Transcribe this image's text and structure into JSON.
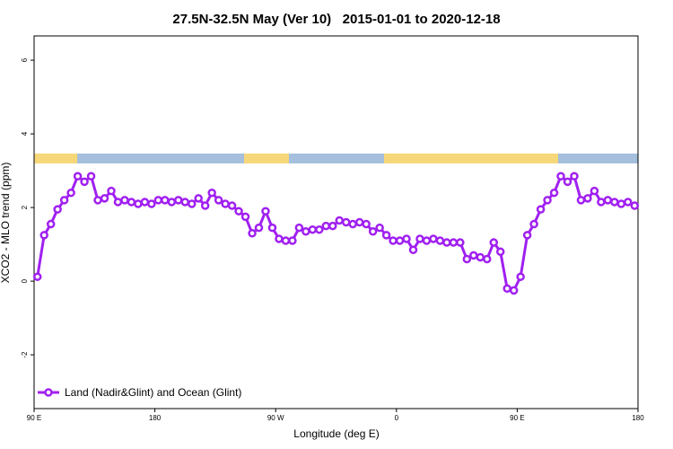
{
  "chart_data": {
    "type": "line",
    "title": "27.5N-32.5N May (Ver 10)   2015-01-01 to 2020-12-18",
    "x_label": "Longitude (deg E)",
    "y_label": "XCO2 - MLO trend (ppm)",
    "xlim": [
      90,
      540
    ],
    "xticks": [
      {
        "value": 90,
        "label": "90 E"
      },
      180,
      {
        "value": 270,
        "label": "90 W"
      },
      {
        "value": 360,
        "label": "0"
      },
      {
        "value": 450,
        "label": "90 E"
      },
      {
        "value": 540,
        "label": "180"
      }
    ],
    "ylim": [
      -3.46,
      6.66
    ],
    "yticks": [
      -2,
      0,
      2,
      4,
      6
    ],
    "legend": "bottom-left",
    "x": [
      92.5,
      97.5,
      102.5,
      107.5,
      112.5,
      117.5,
      122.5,
      127.5,
      132.5,
      137.5,
      142.5,
      147.5,
      152.5,
      157.5,
      162.5,
      167.5,
      172.5,
      177.5,
      182.5,
      187.5,
      192.5,
      197.5,
      202.5,
      207.5,
      212.5,
      217.5,
      222.5,
      227.5,
      232.5,
      237.5,
      242.5,
      247.5,
      252.5,
      257.5,
      262.5,
      267.5,
      272.5,
      277.5,
      282.5,
      287.5,
      292.5,
      297.5,
      302.5,
      307.5,
      312.5,
      317.5,
      322.5,
      327.5,
      332.5,
      337.5,
      342.5,
      347.5,
      352.5,
      357.5,
      362.5,
      367.5,
      372.5,
      377.5,
      382.5,
      387.5,
      392.5,
      397.5,
      402.5,
      407.5,
      412.5,
      417.5,
      422.5,
      427.5,
      432.5,
      437.5,
      442.5,
      447.5,
      452.5,
      457.5,
      462.5,
      467.5,
      472.5,
      477.5,
      482.5,
      487.5,
      492.5,
      497.5,
      502.5,
      507.5,
      512.5,
      517.5,
      522.5,
      527.5,
      532.5,
      537.5
    ],
    "series": [
      {
        "name": "Land (Nadir&Glint) and Ocean (Glint)",
        "color": "#a020f0",
        "values": [
          0.12,
          1.25,
          1.55,
          1.95,
          2.2,
          2.4,
          2.85,
          2.7,
          2.85,
          2.2,
          2.25,
          2.45,
          2.15,
          2.2,
          2.15,
          2.1,
          2.15,
          2.1,
          2.2,
          2.2,
          2.15,
          2.2,
          2.15,
          2.1,
          2.25,
          2.05,
          2.4,
          2.2,
          2.1,
          2.05,
          1.9,
          1.75,
          1.3,
          1.45,
          1.9,
          1.45,
          1.15,
          1.1,
          1.1,
          1.45,
          1.35,
          1.4,
          1.4,
          1.5,
          1.5,
          1.65,
          1.6,
          1.55,
          1.6,
          1.55,
          1.35,
          1.45,
          1.25,
          1.1,
          1.1,
          1.15,
          0.85,
          1.15,
          1.1,
          1.15,
          1.1,
          1.05,
          1.05,
          1.05,
          0.6,
          0.7,
          0.65,
          0.6,
          1.05,
          0.8,
          -0.2,
          -0.25,
          0.12,
          1.25,
          1.55,
          1.95,
          2.2,
          2.4,
          2.85,
          2.7,
          2.85,
          2.2,
          2.25,
          2.45,
          2.15,
          2.2,
          2.15,
          2.1,
          2.15,
          2.05
        ]
      }
    ]
  }
}
